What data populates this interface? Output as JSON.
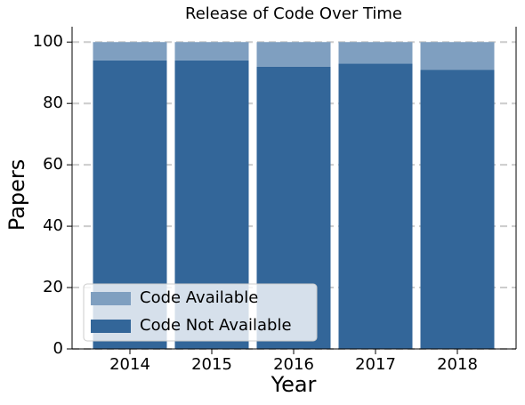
{
  "chart_data": {
    "type": "stacked_bar",
    "title": "Release of Code Over Time",
    "x_label": "Year",
    "y_label": "Papers",
    "categories": [
      "2014",
      "2015",
      "2016",
      "2017",
      "2018"
    ],
    "series": [
      {
        "name": "Code Available",
        "color": "#7f9fc0",
        "values": [
          6,
          6,
          8,
          7,
          9
        ]
      },
      {
        "name": "Code Not Available",
        "color": "#336699",
        "values": [
          94,
          94,
          92,
          93,
          91
        ]
      }
    ],
    "ylim": [
      0,
      105
    ],
    "yticks": [
      0,
      20,
      40,
      60,
      80,
      100
    ],
    "grid": true,
    "legend": "lower left"
  }
}
